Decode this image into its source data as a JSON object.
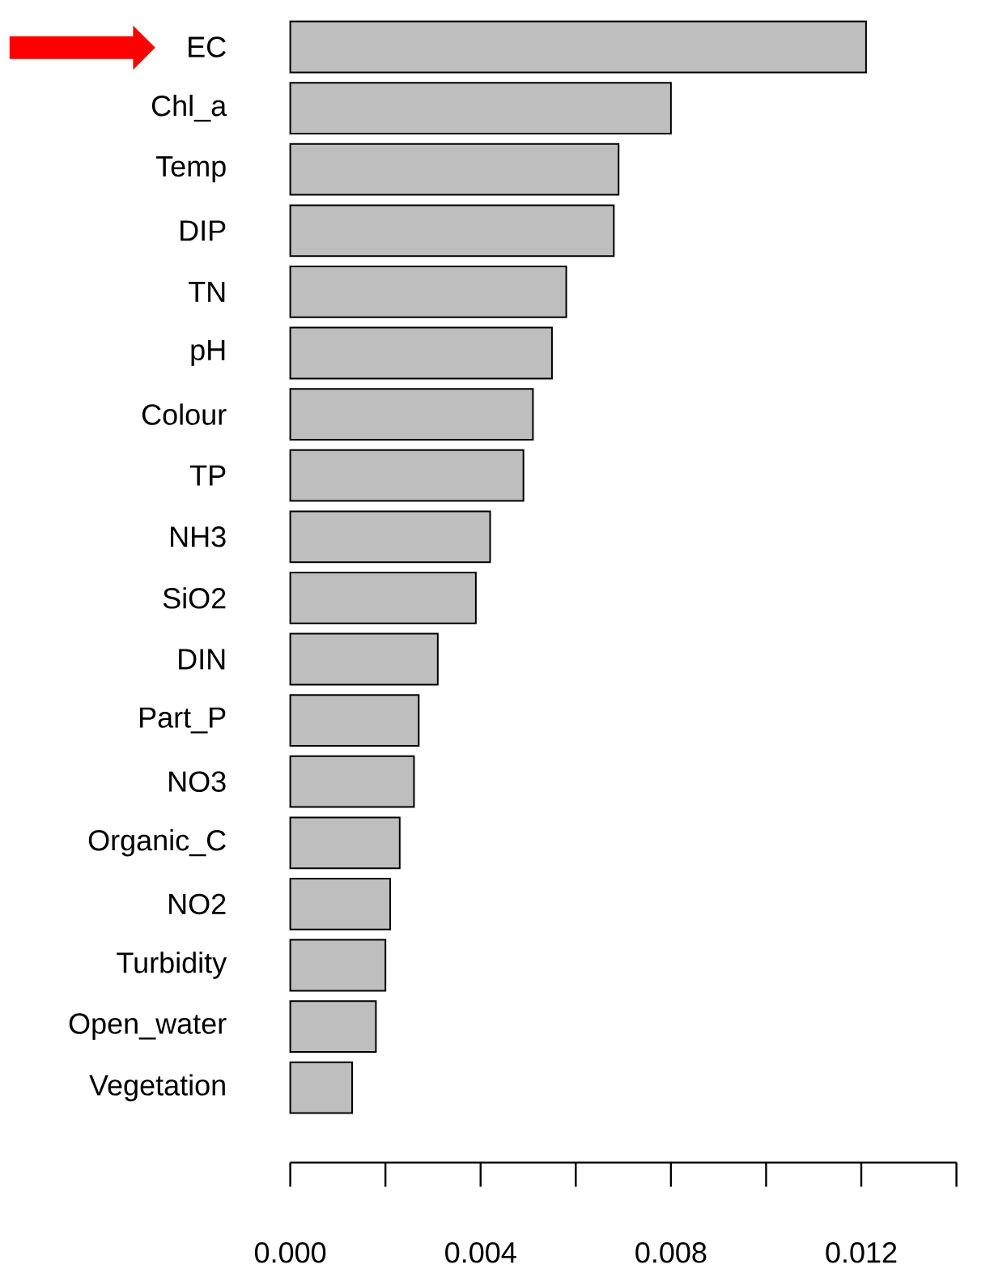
{
  "chart_data": {
    "type": "bar",
    "orientation": "horizontal",
    "categories": [
      "EC",
      "Chl_a",
      "Temp",
      "DIP",
      "TN",
      "pH",
      "Colour",
      "TP",
      "NH3",
      "SiO2",
      "DIN",
      "Part_P",
      "NO3",
      "Organic_C",
      "NO2",
      "Turbidity",
      "Open_water",
      "Vegetation"
    ],
    "values": [
      0.0121,
      0.008,
      0.0069,
      0.0068,
      0.0058,
      0.0055,
      0.0051,
      0.0049,
      0.0042,
      0.0039,
      0.0031,
      0.0027,
      0.0026,
      0.0023,
      0.0021,
      0.002,
      0.0018,
      0.0013
    ],
    "color": "#bebebe",
    "xlim": [
      0,
      0.014
    ],
    "xticks": [
      {
        "value": 0,
        "label": "0.000"
      },
      {
        "value": 0.002,
        "label": null
      },
      {
        "value": 0.004,
        "label": "0.004"
      },
      {
        "value": 0.006,
        "label": null
      },
      {
        "value": 0.008,
        "label": "0.008"
      },
      {
        "value": 0.01,
        "label": null
      },
      {
        "value": 0.012,
        "label": "0.012"
      },
      {
        "value": 0.014,
        "label": null
      }
    ]
  }
}
